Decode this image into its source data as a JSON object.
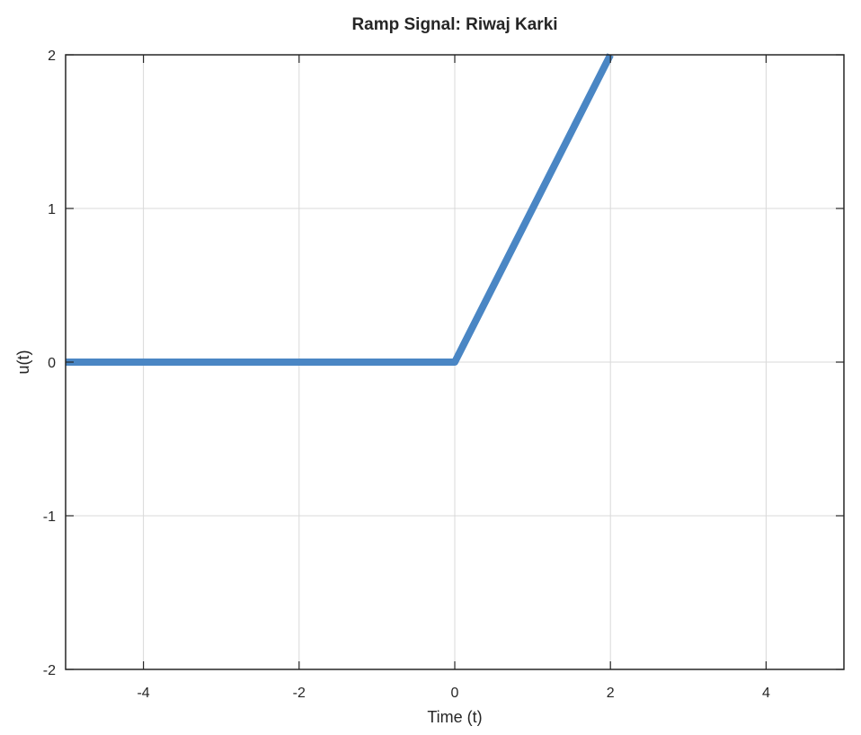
{
  "chart_data": {
    "type": "line",
    "title": "Ramp Signal: Riwaj Karki",
    "xlabel": "Time (t)",
    "ylabel": "u(t)",
    "xlim": [
      -5,
      5
    ],
    "ylim": [
      -2,
      2
    ],
    "grid": true,
    "x_ticks": [
      -4,
      -2,
      0,
      2,
      4
    ],
    "x_tick_labels": [
      "-4",
      "-2",
      "0",
      "2",
      "4"
    ],
    "y_ticks": [
      -2,
      -1,
      0,
      1,
      2
    ],
    "y_tick_labels": [
      "-2",
      "-1",
      "0",
      "1",
      "2"
    ],
    "series": [
      {
        "color": "#4a86c4",
        "x": [
          -5,
          0,
          2
        ],
        "y": [
          0,
          0,
          2
        ]
      }
    ]
  }
}
